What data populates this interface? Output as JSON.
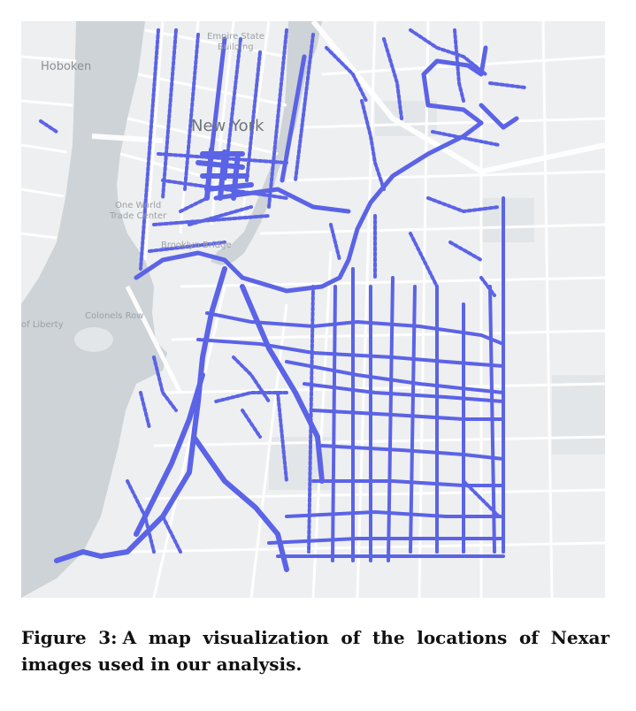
{
  "map": {
    "labels": {
      "hoboken": "Hoboken",
      "new_york": "New York",
      "empire_state_1": "Empire State",
      "empire_state_2": "Building",
      "one_wtc_1": "One World",
      "one_wtc_2": "Trade Center",
      "brooklyn_bridge": "Brooklyn Bridge",
      "colonels_row": "Colonels Row",
      "liberty": "of Liberty"
    },
    "colors": {
      "water": "#cdd3d7",
      "land": "#eeeff0",
      "park": "#e3e6e8",
      "street": "#ffffff",
      "route": "#5b63e6"
    }
  },
  "caption": {
    "label": "Figure 3:",
    "text": "A map visualization of the locations of Nexar images used in our analysis."
  }
}
